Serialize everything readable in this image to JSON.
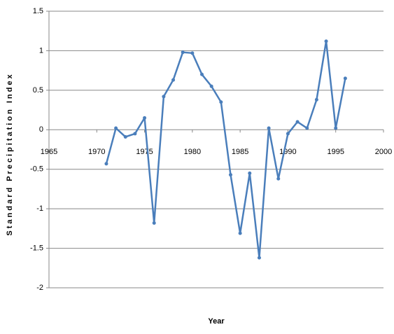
{
  "chart_data": {
    "type": "line",
    "x_label": "Year",
    "y_label": "Standard Precipitation Index",
    "x": [
      1971,
      1972,
      1973,
      1974,
      1975,
      1976,
      1977,
      1978,
      1979,
      1980,
      1981,
      1982,
      1983,
      1984,
      1985,
      1986,
      1987,
      1988,
      1989,
      1990,
      1991,
      1992,
      1993,
      1994,
      1995,
      1996
    ],
    "series": [
      {
        "name": "Standard Precipitation Index",
        "color": "#4a7ebb",
        "values": [
          -0.43,
          0.02,
          -0.09,
          -0.05,
          0.15,
          -1.18,
          0.42,
          0.63,
          0.98,
          0.97,
          0.7,
          0.55,
          0.35,
          -0.57,
          -1.31,
          -0.55,
          -1.62,
          0.02,
          -0.62,
          -0.05,
          0.1,
          0.02,
          0.38,
          1.12,
          0.02,
          0.65
        ]
      }
    ],
    "xlim": [
      1965,
      2000
    ],
    "xticks": [
      1965,
      1970,
      1975,
      1980,
      1985,
      1990,
      1995,
      2000
    ],
    "ylim": [
      -2,
      1.5
    ],
    "yticks": [
      -2,
      -1.5,
      -1,
      -0.5,
      0,
      0.5,
      1,
      1.5
    ],
    "grid": true
  }
}
